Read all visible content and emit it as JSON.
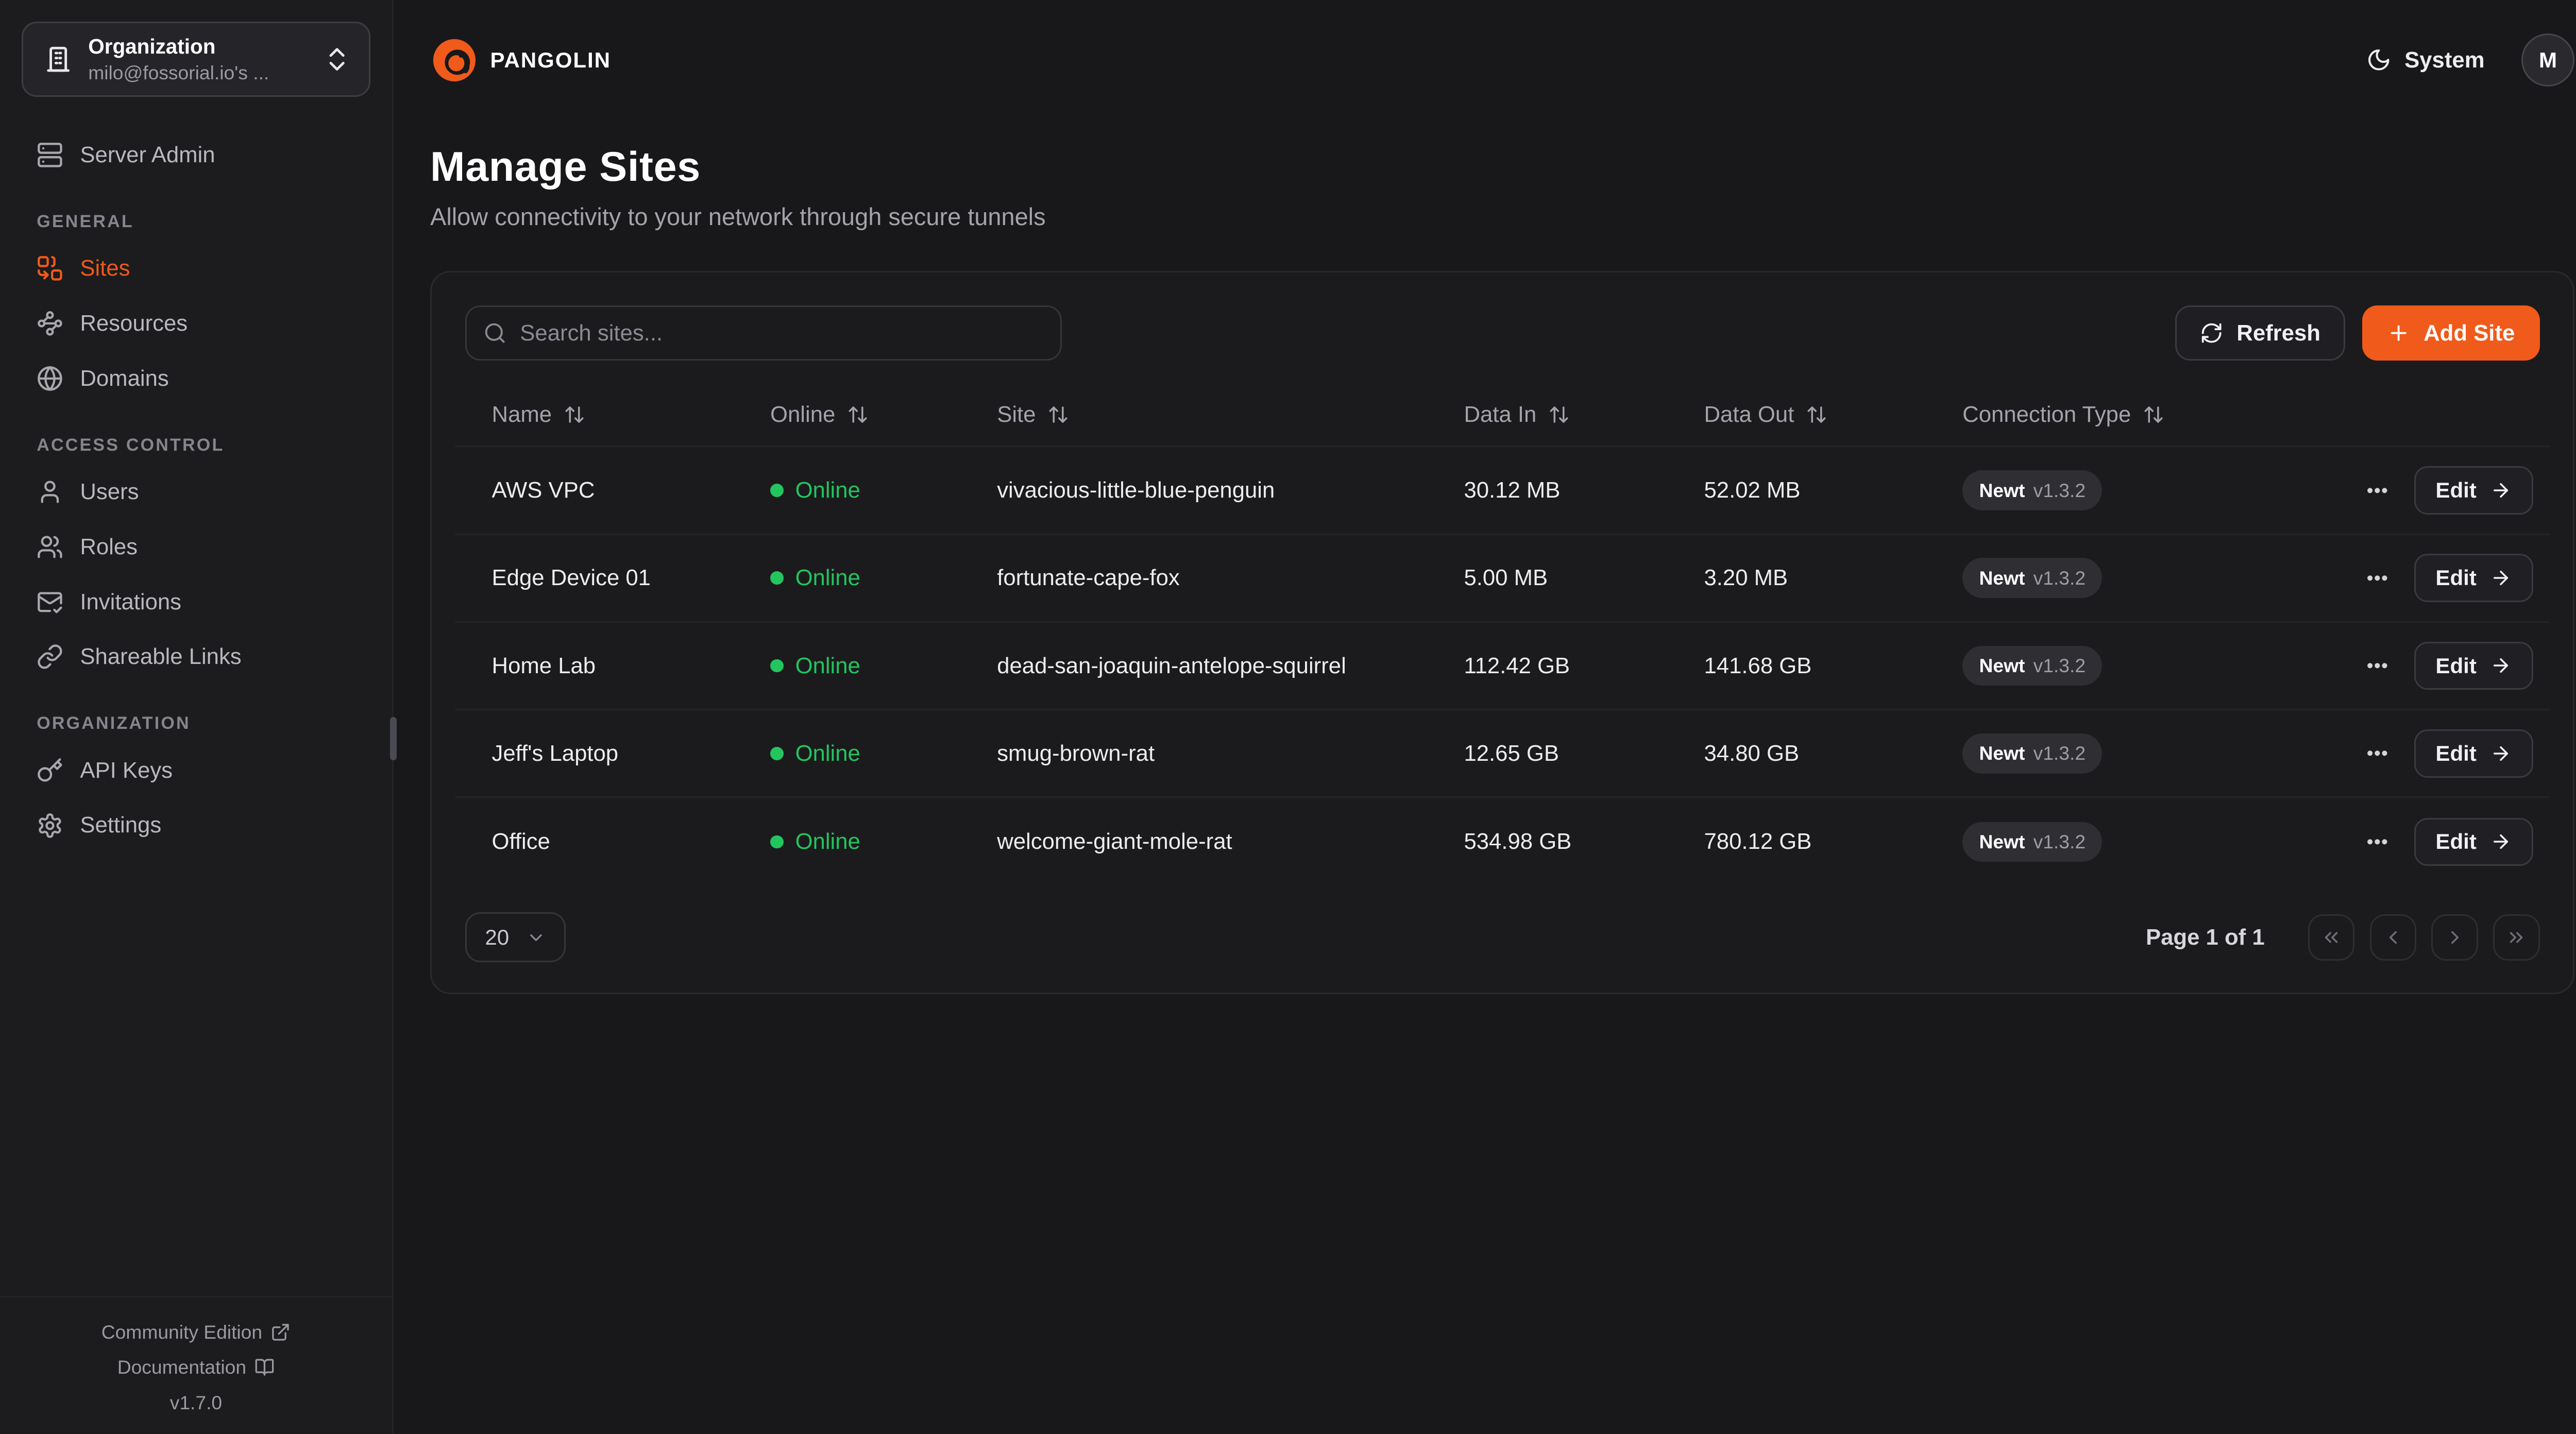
{
  "topbar": {
    "brand": "PANGOLIN",
    "theme_label": "System",
    "avatar_initial": "M"
  },
  "sidebar": {
    "org_switcher": {
      "label": "Organization",
      "value": "milo@fossorial.io's ...",
      "icon": "building"
    },
    "server_admin": {
      "label": "Server Admin",
      "icon": "server"
    },
    "sections": [
      {
        "title": "GENERAL",
        "items": [
          {
            "label": "Sites",
            "icon": "sites",
            "active": true
          },
          {
            "label": "Resources",
            "icon": "waypoints",
            "active": false
          },
          {
            "label": "Domains",
            "icon": "globe",
            "active": false
          }
        ]
      },
      {
        "title": "ACCESS CONTROL",
        "items": [
          {
            "label": "Users",
            "icon": "user",
            "active": false
          },
          {
            "label": "Roles",
            "icon": "users",
            "active": false
          },
          {
            "label": "Invitations",
            "icon": "mail-check",
            "active": false
          },
          {
            "label": "Shareable Links",
            "icon": "link",
            "active": false
          }
        ]
      },
      {
        "title": "ORGANIZATION",
        "items": [
          {
            "label": "API Keys",
            "icon": "key",
            "active": false
          },
          {
            "label": "Settings",
            "icon": "settings",
            "active": false
          }
        ]
      }
    ],
    "footer": {
      "links": [
        {
          "label": "Community Edition",
          "icon": "external-link"
        },
        {
          "label": "Documentation",
          "icon": "book-open"
        }
      ],
      "version": "v1.7.0"
    }
  },
  "page": {
    "title": "Manage Sites",
    "subtitle": "Allow connectivity to your network through secure tunnels"
  },
  "toolbar": {
    "search_placeholder": "Search sites...",
    "refresh_label": "Refresh",
    "add_site_label": "Add Site"
  },
  "table": {
    "columns": [
      "Name",
      "Online",
      "Site",
      "Data In",
      "Data Out",
      "Connection Type"
    ],
    "rows": [
      {
        "name": "AWS VPC",
        "status": "Online",
        "site": "vivacious-little-blue-penguin",
        "data_in": "30.12 MB",
        "data_out": "52.02 MB",
        "conn_type": "Newt",
        "conn_version": "v1.3.2",
        "edit_label": "Edit"
      },
      {
        "name": "Edge Device 01",
        "status": "Online",
        "site": "fortunate-cape-fox",
        "data_in": "5.00 MB",
        "data_out": "3.20 MB",
        "conn_type": "Newt",
        "conn_version": "v1.3.2",
        "edit_label": "Edit"
      },
      {
        "name": "Home Lab",
        "status": "Online",
        "site": "dead-san-joaquin-antelope-squirrel",
        "data_in": "112.42 GB",
        "data_out": "141.68 GB",
        "conn_type": "Newt",
        "conn_version": "v1.3.2",
        "edit_label": "Edit"
      },
      {
        "name": "Jeff's Laptop",
        "status": "Online",
        "site": "smug-brown-rat",
        "data_in": "12.65 GB",
        "data_out": "34.80 GB",
        "conn_type": "Newt",
        "conn_version": "v1.3.2",
        "edit_label": "Edit"
      },
      {
        "name": "Office",
        "status": "Online",
        "site": "welcome-giant-mole-rat",
        "data_in": "534.98 GB",
        "data_out": "780.12 GB",
        "conn_type": "Newt",
        "conn_version": "v1.3.2",
        "edit_label": "Edit"
      }
    ]
  },
  "pagination": {
    "page_size": "20",
    "info": "Page 1 of 1"
  },
  "colors": {
    "accent": "#f05a1a",
    "online_green": "#23c55e",
    "background": "#18181a"
  }
}
